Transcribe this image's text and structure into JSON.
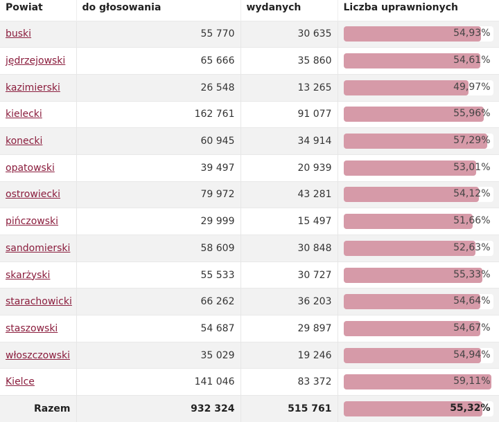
{
  "headers": [
    "Powiat",
    "do głosowania",
    "wydanych",
    "Liczba uprawnionych"
  ],
  "rows": [
    {
      "name": "buski",
      "a": "55 770",
      "b": "30 635",
      "pct": "54,93%",
      "v": 54.93
    },
    {
      "name": "jędrzejowski",
      "a": "65 666",
      "b": "35 860",
      "pct": "54,61%",
      "v": 54.61
    },
    {
      "name": "kazimierski",
      "a": "26 548",
      "b": "13 265",
      "pct": "49,97%",
      "v": 49.97
    },
    {
      "name": "kielecki",
      "a": "162 761",
      "b": "91 077",
      "pct": "55,96%",
      "v": 55.96
    },
    {
      "name": "konecki",
      "a": "60 945",
      "b": "34 914",
      "pct": "57,29%",
      "v": 57.29
    },
    {
      "name": "opatowski",
      "a": "39 497",
      "b": "20 939",
      "pct": "53,01%",
      "v": 53.01
    },
    {
      "name": "ostrowiecki",
      "a": "79 972",
      "b": "43 281",
      "pct": "54,12%",
      "v": 54.12
    },
    {
      "name": "pińczowski",
      "a": "29 999",
      "b": "15 497",
      "pct": "51,66%",
      "v": 51.66
    },
    {
      "name": "sandomierski",
      "a": "58 609",
      "b": "30 848",
      "pct": "52,63%",
      "v": 52.63
    },
    {
      "name": "skarżyski",
      "a": "55 533",
      "b": "30 727",
      "pct": "55,33%",
      "v": 55.33
    },
    {
      "name": "starachowicki",
      "a": "66 262",
      "b": "36 203",
      "pct": "54,64%",
      "v": 54.64
    },
    {
      "name": "staszowski",
      "a": "54 687",
      "b": "29 897",
      "pct": "54,67%",
      "v": 54.67
    },
    {
      "name": "włoszczowski",
      "a": "35 029",
      "b": "19 246",
      "pct": "54,94%",
      "v": 54.94
    },
    {
      "name": "Kielce",
      "a": "141 046",
      "b": "83 372",
      "pct": "59,11%",
      "v": 59.11
    }
  ],
  "total": {
    "name": "Razem",
    "a": "932 324",
    "b": "515 761",
    "pct": "55,32%",
    "v": 55.32
  },
  "colors": {
    "bar": "#d69aa8",
    "link": "#8a1c3c"
  }
}
